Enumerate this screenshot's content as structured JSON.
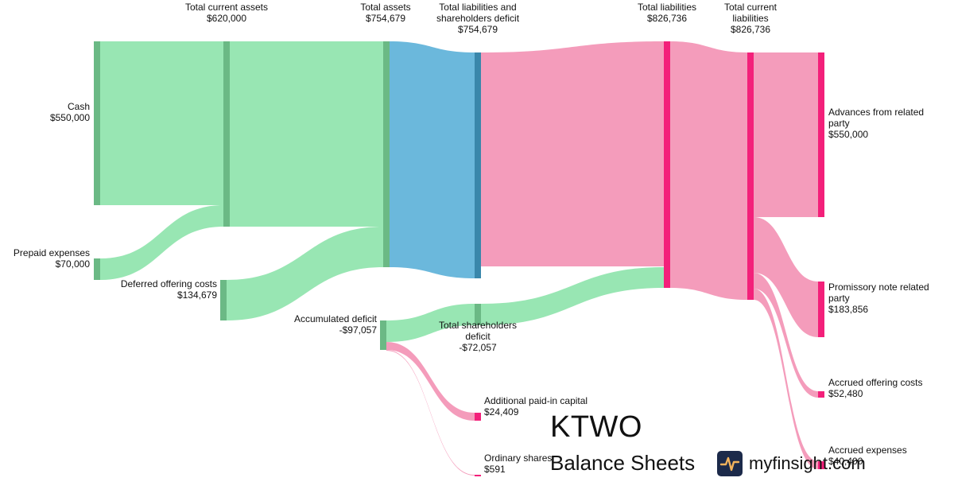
{
  "chart_data": {
    "type": "sankey",
    "colors": {
      "asset_link": "#98e6b3",
      "asset_node": "#6bb985",
      "balance_link": "#6bb8dc",
      "balance_node": "#3a87ab",
      "liability_link": "#f49cbb",
      "liability_node": "#f3207a"
    },
    "nodes": [
      {
        "id": "cash",
        "name": "Cash",
        "value": "$550,000"
      },
      {
        "id": "prepaid",
        "name": "Prepaid expenses",
        "value": "$70,000"
      },
      {
        "id": "tca",
        "name": "Total current assets",
        "value": "$620,000"
      },
      {
        "id": "doc",
        "name": "Deferred offering costs",
        "value": "$134,679"
      },
      {
        "id": "ta",
        "name": "Total assets",
        "value": "$754,679"
      },
      {
        "id": "acc_def",
        "name": "Accumulated deficit",
        "value": "-$97,057"
      },
      {
        "id": "tlsd",
        "name": "Total liabilities and shareholders deficit",
        "value": "$754,679"
      },
      {
        "id": "tsd",
        "name": "Total shareholders deficit",
        "value": "-$72,057"
      },
      {
        "id": "apic",
        "name": "Additional paid-in capital",
        "value": "$24,409"
      },
      {
        "id": "ord",
        "name": "Ordinary shares",
        "value": "$591"
      },
      {
        "id": "tl",
        "name": "Total liabilities",
        "value": "$826,736"
      },
      {
        "id": "tcl",
        "name": "Total current liabilities",
        "value": "$826,736"
      },
      {
        "id": "adv",
        "name": "Advances from related party",
        "value": "$550,000"
      },
      {
        "id": "prom",
        "name": "Promissory note related party",
        "value": "$183,856"
      },
      {
        "id": "aoc",
        "name": "Accrued offering costs",
        "value": "$52,480"
      },
      {
        "id": "aexp",
        "name": "Accrued expenses",
        "value": "$40,400"
      }
    ],
    "links": [
      {
        "source": "Cash",
        "target": "Total current assets",
        "value": 550000
      },
      {
        "source": "Prepaid expenses",
        "target": "Total current assets",
        "value": 70000
      },
      {
        "source": "Total current assets",
        "target": "Total assets",
        "value": 620000
      },
      {
        "source": "Deferred offering costs",
        "target": "Total assets",
        "value": 134679
      },
      {
        "source": "Total assets",
        "target": "Total liabilities and shareholders deficit",
        "value": 754679
      },
      {
        "source": "Accumulated deficit",
        "target": "Total shareholders deficit",
        "value": 97057
      },
      {
        "source": "Accumulated deficit",
        "target": "Additional paid-in capital",
        "value": 24409
      },
      {
        "source": "Accumulated deficit",
        "target": "Ordinary shares",
        "value": 591
      },
      {
        "source": "Total liabilities and shareholders deficit",
        "target": "Total liabilities",
        "value": 754679
      },
      {
        "source": "Total shareholders deficit",
        "target": "Total liabilities",
        "value": 72057
      },
      {
        "source": "Total liabilities",
        "target": "Total current liabilities",
        "value": 826736
      },
      {
        "source": "Total current liabilities",
        "target": "Advances from related party",
        "value": 550000
      },
      {
        "source": "Total current liabilities",
        "target": "Promissory note related party",
        "value": 183856
      },
      {
        "source": "Total current liabilities",
        "target": "Accrued offering costs",
        "value": 52480
      },
      {
        "source": "Total current liabilities",
        "target": "Accrued expenses",
        "value": 40400
      }
    ]
  },
  "brand": {
    "ticker": "KTWO",
    "subtitle": "Balance Sheets",
    "site": "myfinsight.com",
    "logo_icon": "pulse-line-icon"
  }
}
